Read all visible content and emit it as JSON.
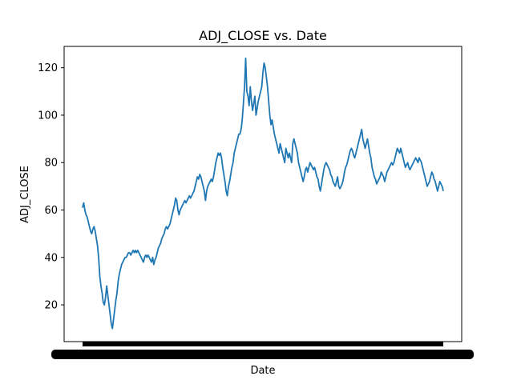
{
  "chart_data": {
    "type": "line",
    "title": "ADJ_CLOSE vs. Date",
    "xlabel": "Date",
    "ylabel": "ADJ_CLOSE",
    "ylim": [
      4.5,
      129
    ],
    "yticks": [
      20,
      40,
      60,
      80,
      100,
      120
    ],
    "grid": false,
    "legend": "none",
    "x_tick_labels": "dense overlapping date labels (illegible)",
    "colors": {
      "line": "#1f77b4",
      "axes": "#000000"
    },
    "series": [
      {
        "values": [
          61,
          63,
          60,
          58,
          57,
          55,
          53,
          51,
          50,
          52,
          53,
          51,
          48,
          45,
          40,
          32,
          28,
          25,
          21,
          20,
          23,
          28,
          24,
          20,
          16,
          12,
          10,
          14,
          18,
          22,
          25,
          30,
          33,
          35,
          37,
          38,
          39,
          40,
          40,
          41,
          42,
          42,
          41,
          42,
          43,
          42,
          43,
          42,
          43,
          42,
          41,
          40,
          39,
          38,
          40,
          41,
          40,
          41,
          40,
          39,
          38,
          40,
          37,
          39,
          40,
          42,
          44,
          45,
          46,
          48,
          49,
          50,
          52,
          53,
          52,
          53,
          54,
          56,
          58,
          60,
          62,
          65,
          64,
          60,
          58,
          60,
          61,
          62,
          63,
          64,
          63,
          64,
          65,
          66,
          65,
          66,
          67,
          68,
          70,
          72,
          74,
          73,
          75,
          74,
          72,
          70,
          68,
          64,
          68,
          70,
          71,
          72,
          73,
          72,
          74,
          77,
          80,
          82,
          84,
          83,
          84,
          82,
          78,
          75,
          72,
          68,
          66,
          70,
          72,
          75,
          78,
          80,
          84,
          86,
          88,
          90,
          92,
          92,
          94,
          98,
          105,
          112,
          124,
          110,
          108,
          104,
          112,
          106,
          102,
          105,
          108,
          100,
          103,
          106,
          108,
          110,
          112,
          118,
          122,
          120,
          116,
          112,
          106,
          100,
          96,
          98,
          95,
          92,
          90,
          88,
          86,
          84,
          88,
          86,
          84,
          82,
          80,
          86,
          84,
          82,
          84,
          82,
          80,
          88,
          90,
          88,
          86,
          84,
          80,
          78,
          76,
          74,
          72,
          74,
          77,
          78,
          76,
          78,
          80,
          79,
          78,
          77,
          78,
          76,
          74,
          73,
          70,
          68,
          71,
          74,
          77,
          79,
          80,
          79,
          78,
          77,
          75,
          74,
          72,
          71,
          70,
          72,
          74,
          70,
          69,
          70,
          71,
          73,
          76,
          78,
          79,
          81,
          83,
          85,
          86,
          85,
          83,
          82,
          84,
          86,
          88,
          90,
          92,
          94,
          90,
          88,
          86,
          88,
          90,
          87,
          84,
          82,
          78,
          76,
          74,
          73,
          71,
          72,
          73,
          74,
          76,
          75,
          74,
          72,
          74,
          76,
          77,
          78,
          79,
          80,
          79,
          80,
          82,
          84,
          86,
          85,
          84,
          86,
          84,
          82,
          80,
          78,
          79,
          80,
          78,
          77,
          78,
          79,
          80,
          81,
          82,
          81,
          80,
          82,
          81,
          80,
          78,
          76,
          74,
          72,
          70,
          71,
          72,
          74,
          76,
          75,
          73,
          72,
          70,
          68,
          70,
          72,
          71,
          70,
          68
        ]
      }
    ]
  }
}
